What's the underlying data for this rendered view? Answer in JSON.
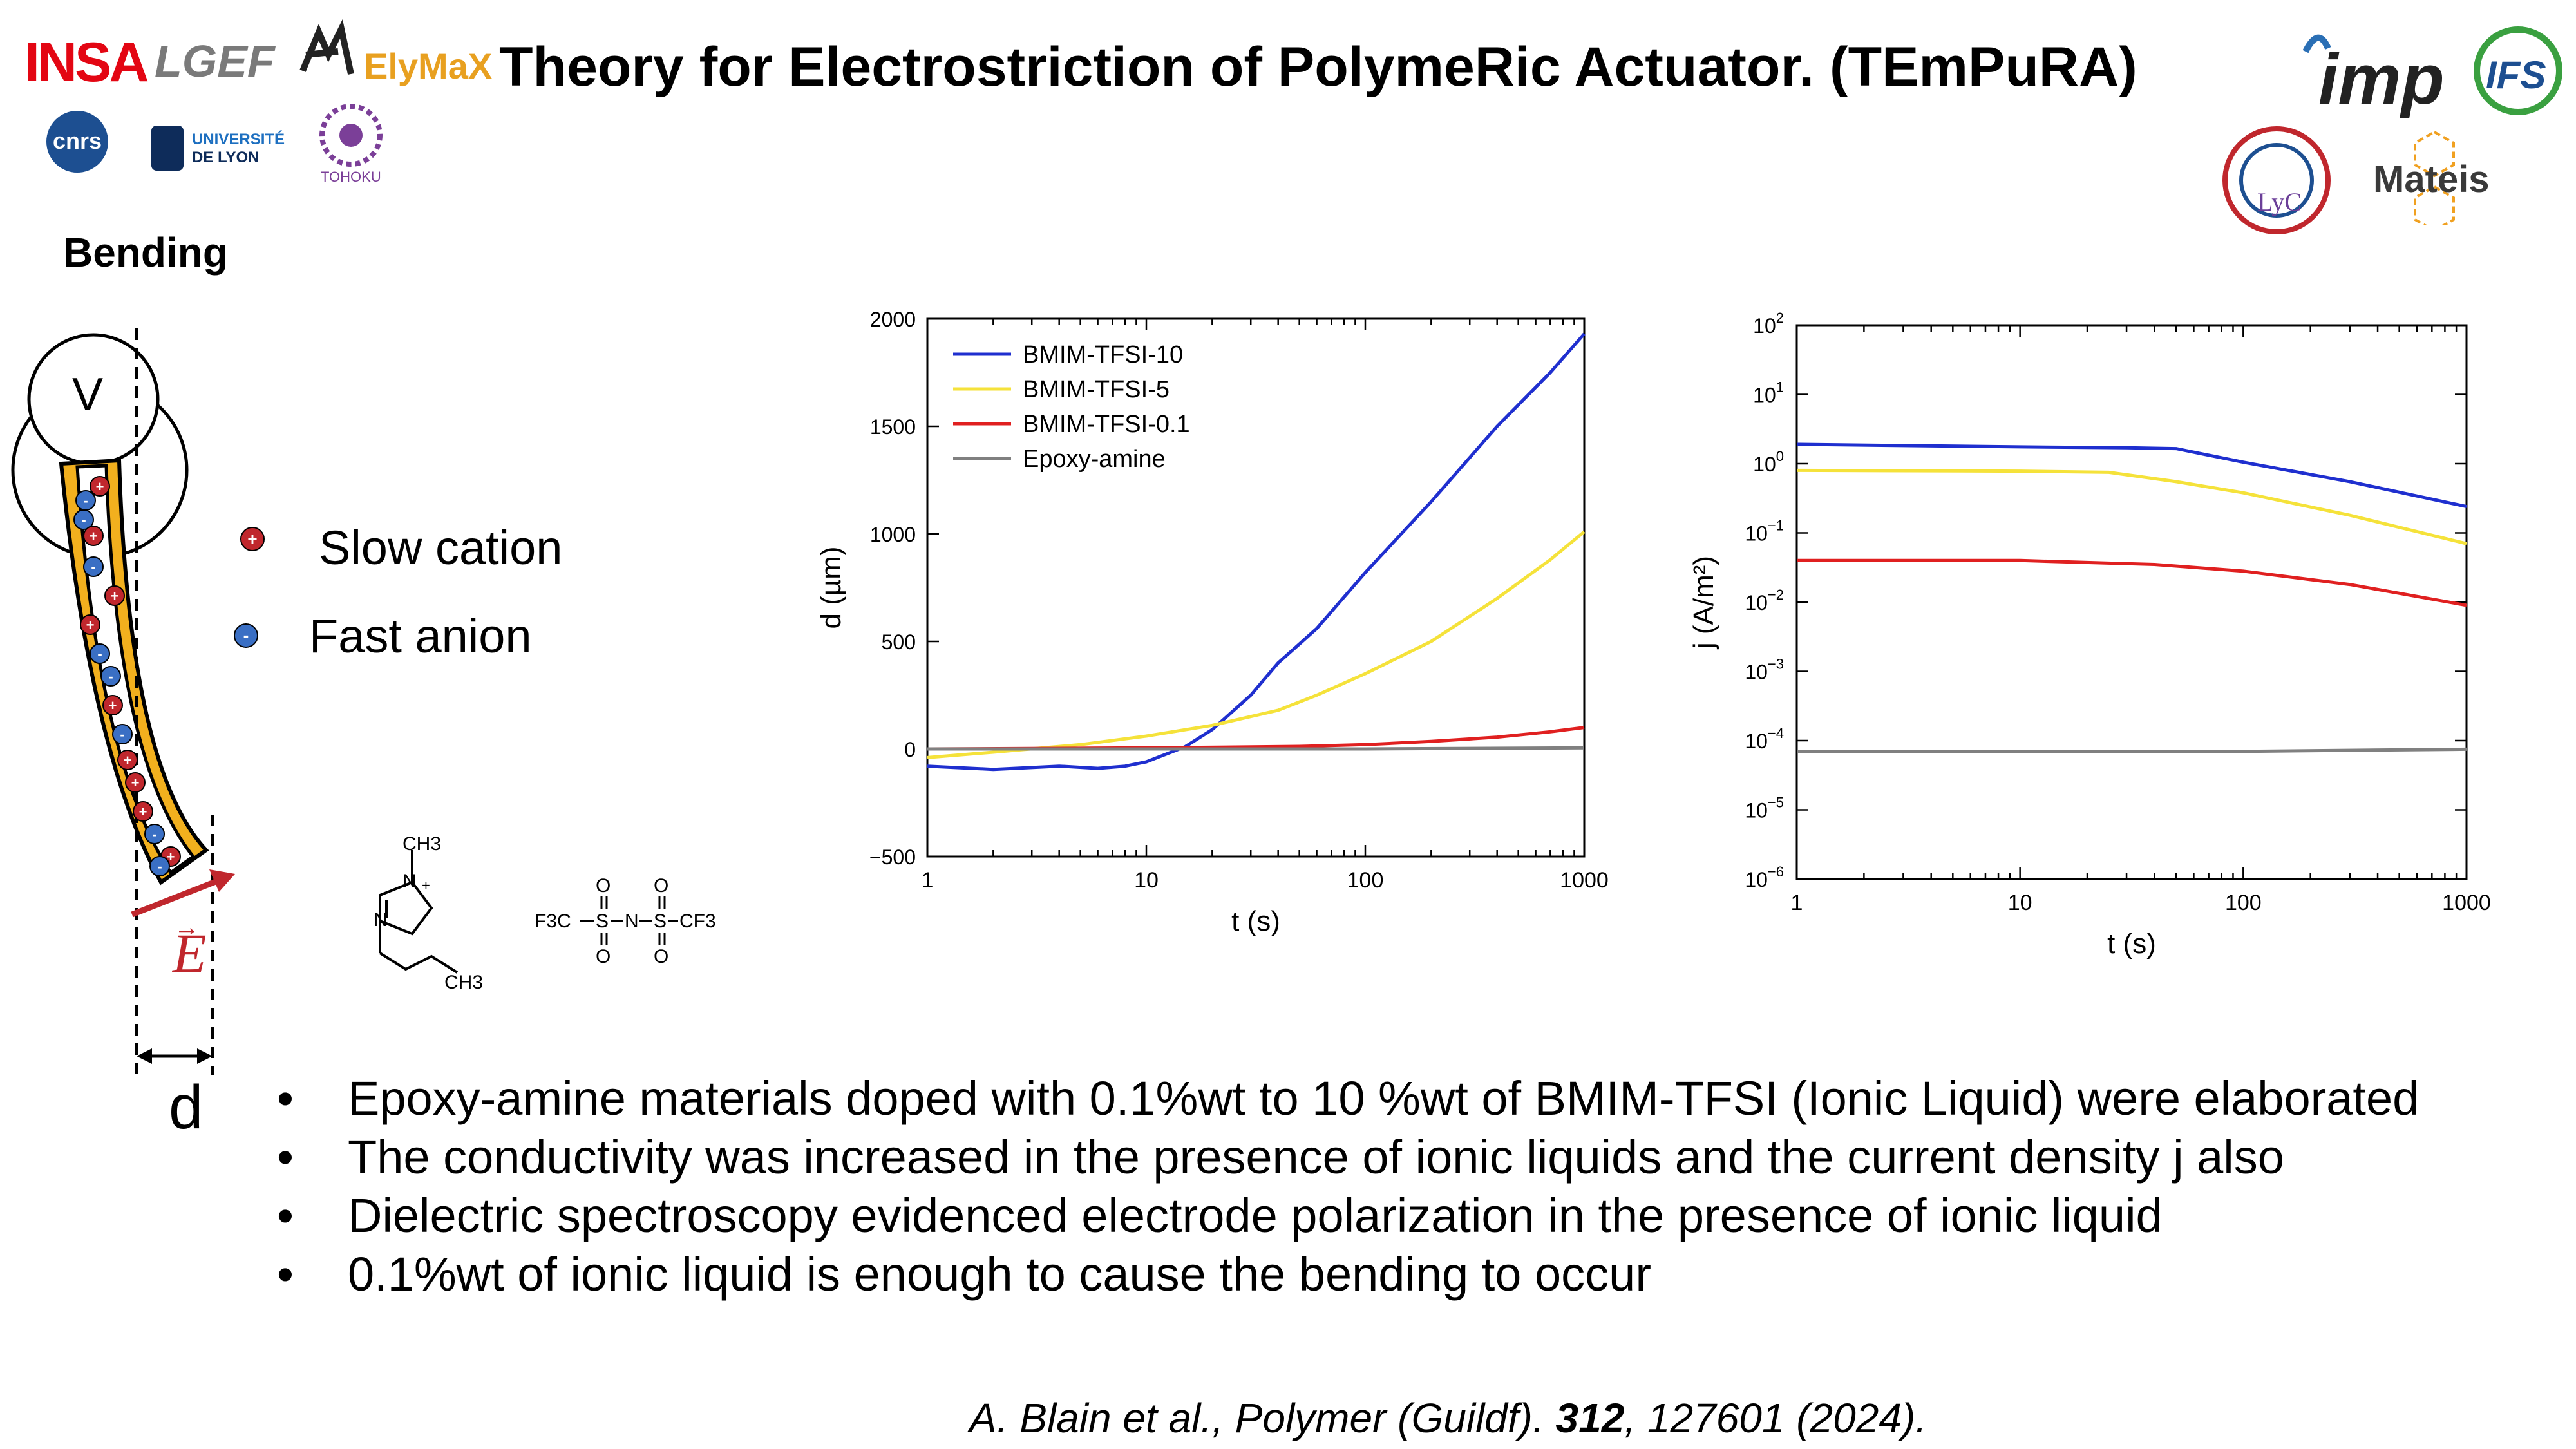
{
  "header": {
    "title": "Theory for Electrostriction of PolymeRic Actuator. (TEmPuRA)",
    "logos": {
      "insa": "INSA",
      "lgef": "LGEF",
      "elymax": "ElyMaX",
      "cnrs": "cnrs",
      "universite_line1": "UNIVERSITÉ",
      "universite_line2": "DE LYON",
      "tohoku": "TOHOKU",
      "imp": "imp",
      "ifs": "IFS",
      "lyc": "LyC",
      "mateis": "Mateis"
    }
  },
  "diagram": {
    "section_title": "Bending",
    "voltmeter_label": "V",
    "field_label": "E",
    "displacement_label": "d",
    "legend": [
      {
        "icon": "cation",
        "label": "Slow cation",
        "color": "#c0272d"
      },
      {
        "icon": "anion",
        "label": "Fast anion",
        "color": "#3a6fc4"
      }
    ],
    "molecule_cation": {
      "labels": [
        "CH3",
        "N",
        "+",
        "N",
        "CH3"
      ]
    },
    "molecule_anion": {
      "labels": [
        "F3C",
        "S",
        "N",
        "S",
        "CF3",
        "O",
        "O",
        "O",
        "O"
      ]
    }
  },
  "bullets": [
    "Epoxy-amine materials doped with 0.1%wt to 10 %wt of BMIM-TFSI (Ionic Liquid) were elaborated",
    "The conductivity was increased in the presence of ionic liquids and the current density j also",
    "Dielectric spectroscopy evidenced electrode polarization in the presence of ionic liquid",
    "0.1%wt of ionic liquid is enough to cause the bending to occur"
  ],
  "citation": {
    "prefix": "A. Blain et al., Polymer (Guildf). ",
    "volume": "312",
    "suffix": ", 127601 (2024)."
  },
  "chart_data": [
    {
      "type": "line",
      "xlabel": "t (s)",
      "ylabel": "d (µm)",
      "xscale": "log",
      "xlim": [
        1,
        1000
      ],
      "ylim": [
        -500,
        2000
      ],
      "xticks": [
        "1",
        "10",
        "100",
        "1000"
      ],
      "yticks": [
        "-500",
        "0",
        "500",
        "1000",
        "1500",
        "2000"
      ],
      "legend_position": "top-left",
      "series": [
        {
          "name": "BMIM-TFSI-10",
          "color": "#1f2fcf",
          "x": [
            1,
            2,
            4,
            6,
            8,
            10,
            15,
            20,
            30,
            40,
            60,
            100,
            200,
            400,
            700,
            1000
          ],
          "y": [
            -80,
            -95,
            -80,
            -90,
            -80,
            -60,
            10,
            90,
            250,
            400,
            560,
            820,
            1150,
            1500,
            1750,
            1930
          ]
        },
        {
          "name": "BMIM-TFSI-5",
          "color": "#f5e23a",
          "x": [
            1,
            2,
            5,
            10,
            20,
            40,
            60,
            100,
            200,
            400,
            700,
            1000
          ],
          "y": [
            -40,
            -15,
            20,
            60,
            110,
            180,
            250,
            350,
            500,
            700,
            880,
            1010
          ]
        },
        {
          "name": "BMIM-TFSI-0.1",
          "color": "#e02020",
          "x": [
            1,
            10,
            50,
            100,
            200,
            400,
            700,
            1000
          ],
          "y": [
            0,
            5,
            12,
            20,
            35,
            55,
            80,
            100
          ]
        },
        {
          "name": "Epoxy-amine",
          "color": "#808080",
          "x": [
            1,
            10,
            100,
            1000
          ],
          "y": [
            0,
            0,
            0,
            5
          ]
        }
      ]
    },
    {
      "type": "line",
      "xlabel": "t (s)",
      "ylabel": "j (A/m²)",
      "xscale": "log",
      "yscale": "log",
      "xlim": [
        1,
        1000
      ],
      "ylim": [
        1e-06,
        100
      ],
      "xticks": [
        "1",
        "10",
        "100",
        "1000"
      ],
      "yticks": [
        "10^-6",
        "10^-5",
        "10^-4",
        "10^-3",
        "10^-2",
        "10^-1",
        "10^0",
        "10^1",
        "10^2"
      ],
      "series": [
        {
          "color": "#1f2fcf",
          "x": [
            1,
            10,
            30,
            50,
            100,
            300,
            1000
          ],
          "y": [
            1.9,
            1.75,
            1.7,
            1.65,
            1.05,
            0.55,
            0.24
          ]
        },
        {
          "color": "#f5e23a",
          "x": [
            1,
            10,
            25,
            50,
            100,
            300,
            1000
          ],
          "y": [
            0.8,
            0.78,
            0.75,
            0.55,
            0.38,
            0.18,
            0.07
          ]
        },
        {
          "color": "#e02020",
          "x": [
            1,
            10,
            40,
            100,
            300,
            1000
          ],
          "y": [
            0.04,
            0.04,
            0.035,
            0.028,
            0.018,
            0.009
          ]
        },
        {
          "color": "#808080",
          "x": [
            1,
            10,
            100,
            1000
          ],
          "y": [
            7e-05,
            7e-05,
            7e-05,
            7.5e-05
          ]
        }
      ]
    }
  ]
}
